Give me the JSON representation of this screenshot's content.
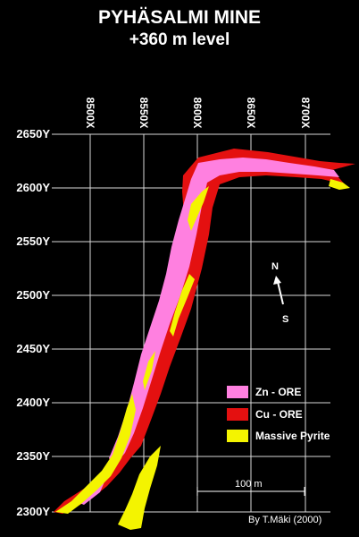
{
  "title": "PYHÄSALMI MINE",
  "subtitle": "+360 m level",
  "x_axis_labels": [
    "8500X",
    "8550X",
    "8600X",
    "8650X",
    "8700X"
  ],
  "y_axis_labels": [
    "2650Y",
    "2600Y",
    "2550Y",
    "2500Y",
    "2450Y",
    "2400Y",
    "2350Y",
    "2300Y"
  ],
  "legend": [
    {
      "label": "Zn - ORE",
      "color": "#ff80e0"
    },
    {
      "label": "Cu - ORE",
      "color": "#e41010"
    },
    {
      "label": "Massive Pyrite",
      "color": "#f4f400"
    }
  ],
  "compass": {
    "north": "N",
    "south": "S"
  },
  "scale_bar": {
    "label": "100 m"
  },
  "credit": "By T.Mäki (2000)",
  "colors": {
    "background": "#000000",
    "grid": "#d8d8d8",
    "zn": "#ff80e0",
    "cu": "#e41010",
    "pyrite": "#f4f400"
  }
}
